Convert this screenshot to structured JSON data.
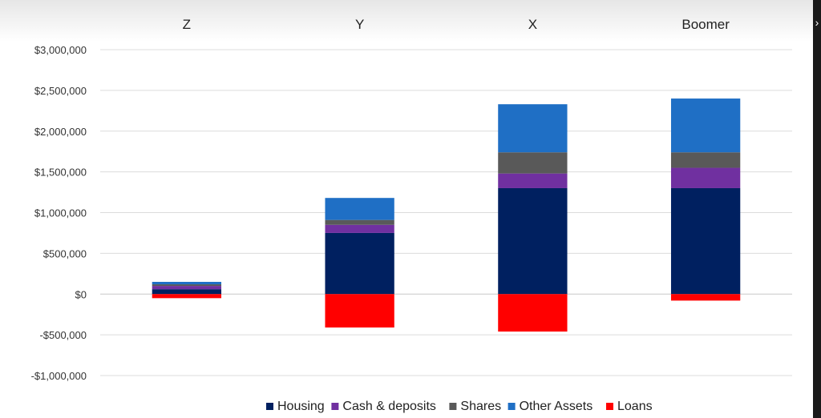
{
  "chart_data": {
    "type": "bar",
    "stacked": true,
    "categories": [
      "Z",
      "Y",
      "X",
      "Boomer"
    ],
    "category_axis_position": "top",
    "series": [
      {
        "name": "Housing",
        "color": "#002060",
        "values": [
          60000,
          750000,
          1300000,
          1300000
        ]
      },
      {
        "name": "Cash & deposits",
        "color": "#7030A0",
        "values": [
          40000,
          100000,
          180000,
          250000
        ]
      },
      {
        "name": "Shares",
        "color": "#595959",
        "values": [
          20000,
          60000,
          260000,
          190000
        ]
      },
      {
        "name": "Other Assets",
        "color": "#1F6FC5",
        "values": [
          30000,
          270000,
          590000,
          660000
        ]
      },
      {
        "name": "Loans",
        "color": "#FF0000",
        "values": [
          -50000,
          -410000,
          -460000,
          -80000
        ]
      }
    ],
    "ylim": [
      -1000000,
      3000000
    ],
    "yticks": [
      3000000,
      2500000,
      2000000,
      1500000,
      1000000,
      500000,
      0,
      -500000,
      -1000000
    ],
    "ytick_labels": [
      "$3,000,000",
      "$2,500,000",
      "$2,000,000",
      "$1,500,000",
      "$1,000,000",
      "$500,000",
      "$0",
      "-$500,000",
      "-$1,000,000"
    ],
    "grid": true,
    "legend_position": "bottom",
    "title": "",
    "xlabel": "",
    "ylabel": ""
  }
}
